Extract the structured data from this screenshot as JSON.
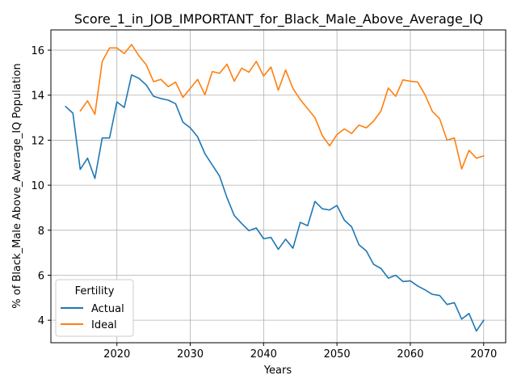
{
  "chart_data": {
    "type": "line",
    "title": "Score_1_in_JOB_IMPORTANT_for_Black_Male_Above_Average_IQ",
    "xlabel": "Years",
    "ylabel": "% of Black_Male Above_Average_IQ Population",
    "xlim": [
      2011,
      2073
    ],
    "ylim": [
      3.0,
      16.9
    ],
    "xticks": [
      2020,
      2030,
      2040,
      2050,
      2060,
      2070
    ],
    "yticks": [
      4,
      6,
      8,
      10,
      12,
      14,
      16
    ],
    "grid": true,
    "legend": {
      "title": "Fertility",
      "placement": "lower-left"
    },
    "series": [
      {
        "name": "Actual",
        "color": "#1f77b4",
        "x": [
          2013,
          2014,
          2015,
          2016,
          2017,
          2018,
          2019,
          2020,
          2021,
          2022,
          2023,
          2024,
          2025,
          2026,
          2027,
          2028,
          2029,
          2030,
          2031,
          2032,
          2033,
          2034,
          2035,
          2036,
          2037,
          2038,
          2039,
          2040,
          2041,
          2042,
          2043,
          2044,
          2045,
          2046,
          2047,
          2048,
          2049,
          2050,
          2051,
          2052,
          2053,
          2054,
          2055,
          2056,
          2057,
          2058,
          2059,
          2060,
          2061,
          2062,
          2063,
          2064,
          2065,
          2066,
          2067,
          2068,
          2069,
          2070
        ],
        "values": [
          13.5,
          13.2,
          10.7,
          11.2,
          10.3,
          12.1,
          12.1,
          13.7,
          13.45,
          14.9,
          14.75,
          14.45,
          13.95,
          13.85,
          13.78,
          13.62,
          12.8,
          12.55,
          12.15,
          11.4,
          10.9,
          10.4,
          9.45,
          8.65,
          8.3,
          7.98,
          8.1,
          7.62,
          7.68,
          7.15,
          7.6,
          7.2,
          8.35,
          8.2,
          9.28,
          8.95,
          8.9,
          9.1,
          8.45,
          8.15,
          7.35,
          7.08,
          6.48,
          6.3,
          5.87,
          6.0,
          5.72,
          5.75,
          5.52,
          5.35,
          5.15,
          5.1,
          4.7,
          4.78,
          4.05,
          4.3,
          3.52,
          4.0
        ]
      },
      {
        "name": "Ideal",
        "color": "#ff7f0e",
        "x": [
          2015,
          2016,
          2017,
          2018,
          2019,
          2020,
          2021,
          2022,
          2023,
          2024,
          2025,
          2026,
          2027,
          2028,
          2029,
          2030,
          2031,
          2032,
          2033,
          2034,
          2035,
          2036,
          2037,
          2038,
          2039,
          2040,
          2041,
          2042,
          2043,
          2044,
          2045,
          2046,
          2047,
          2048,
          2049,
          2050,
          2051,
          2052,
          2053,
          2054,
          2055,
          2056,
          2057,
          2058,
          2059,
          2060,
          2061,
          2062,
          2063,
          2064,
          2065,
          2066,
          2067,
          2068,
          2069,
          2070
        ],
        "values": [
          13.3,
          13.75,
          13.15,
          15.5,
          16.1,
          16.1,
          15.85,
          16.25,
          15.75,
          15.35,
          14.6,
          14.7,
          14.38,
          14.58,
          13.9,
          14.3,
          14.7,
          14.02,
          15.05,
          14.97,
          15.38,
          14.62,
          15.2,
          15.02,
          15.5,
          14.85,
          15.25,
          14.22,
          15.12,
          14.3,
          13.8,
          13.4,
          13.0,
          12.2,
          11.75,
          12.25,
          12.5,
          12.3,
          12.67,
          12.55,
          12.85,
          13.3,
          14.32,
          13.95,
          14.68,
          14.62,
          14.58,
          14.02,
          13.28,
          12.95,
          12.0,
          12.1,
          10.72,
          11.55,
          11.2,
          11.3
        ]
      }
    ]
  }
}
